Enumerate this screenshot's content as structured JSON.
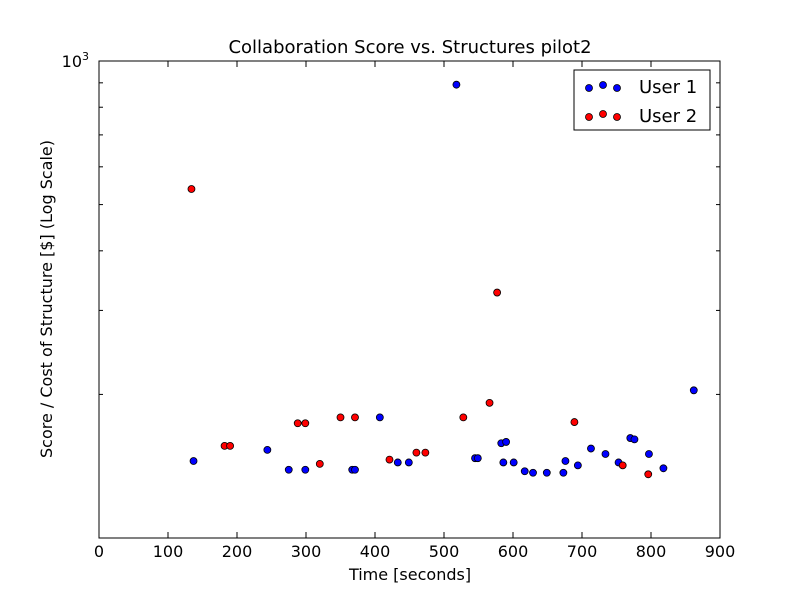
{
  "chart_data": {
    "type": "scatter",
    "title": "Collaboration Score vs. Structures pilot2",
    "xlabel": "Time [seconds]",
    "ylabel": "Score / Cost of Structure [$] (Log Scale)",
    "xlim": [
      0,
      900
    ],
    "ylim": [
      100,
      1000
    ],
    "yscale": "log",
    "x_ticks": [
      0,
      100,
      200,
      300,
      400,
      500,
      600,
      700,
      800,
      900
    ],
    "y_tick_label": "10^3",
    "grid": false,
    "legend_position": "top-right",
    "series": [
      {
        "name": "User 1",
        "color": "#0000ff",
        "points": [
          [
            137,
            145
          ],
          [
            244,
            153
          ],
          [
            275,
            139
          ],
          [
            299,
            139
          ],
          [
            367,
            139
          ],
          [
            371,
            139
          ],
          [
            407,
            179
          ],
          [
            433,
            144
          ],
          [
            449,
            144
          ],
          [
            518,
            892
          ],
          [
            545,
            147
          ],
          [
            549,
            147
          ],
          [
            583,
            158
          ],
          [
            586,
            144
          ],
          [
            590,
            159
          ],
          [
            601,
            144
          ],
          [
            617,
            138
          ],
          [
            629,
            137
          ],
          [
            649,
            137
          ],
          [
            673,
            137
          ],
          [
            676,
            145
          ],
          [
            694,
            142
          ],
          [
            713,
            154
          ],
          [
            734,
            150
          ],
          [
            753,
            144
          ],
          [
            770,
            162
          ],
          [
            776,
            161
          ],
          [
            797,
            150
          ],
          [
            818,
            140
          ],
          [
            862,
            204
          ]
        ]
      },
      {
        "name": "User 2",
        "color": "#ff0000",
        "points": [
          [
            134,
            539
          ],
          [
            182,
            156
          ],
          [
            190,
            156
          ],
          [
            288,
            174
          ],
          [
            299,
            174
          ],
          [
            320,
            143
          ],
          [
            350,
            179
          ],
          [
            371,
            179
          ],
          [
            421,
            146
          ],
          [
            460,
            151
          ],
          [
            473,
            151
          ],
          [
            528,
            179
          ],
          [
            566,
            192
          ],
          [
            577,
            327
          ],
          [
            689,
            175
          ],
          [
            759,
            142
          ],
          [
            796,
            136
          ]
        ]
      }
    ]
  }
}
